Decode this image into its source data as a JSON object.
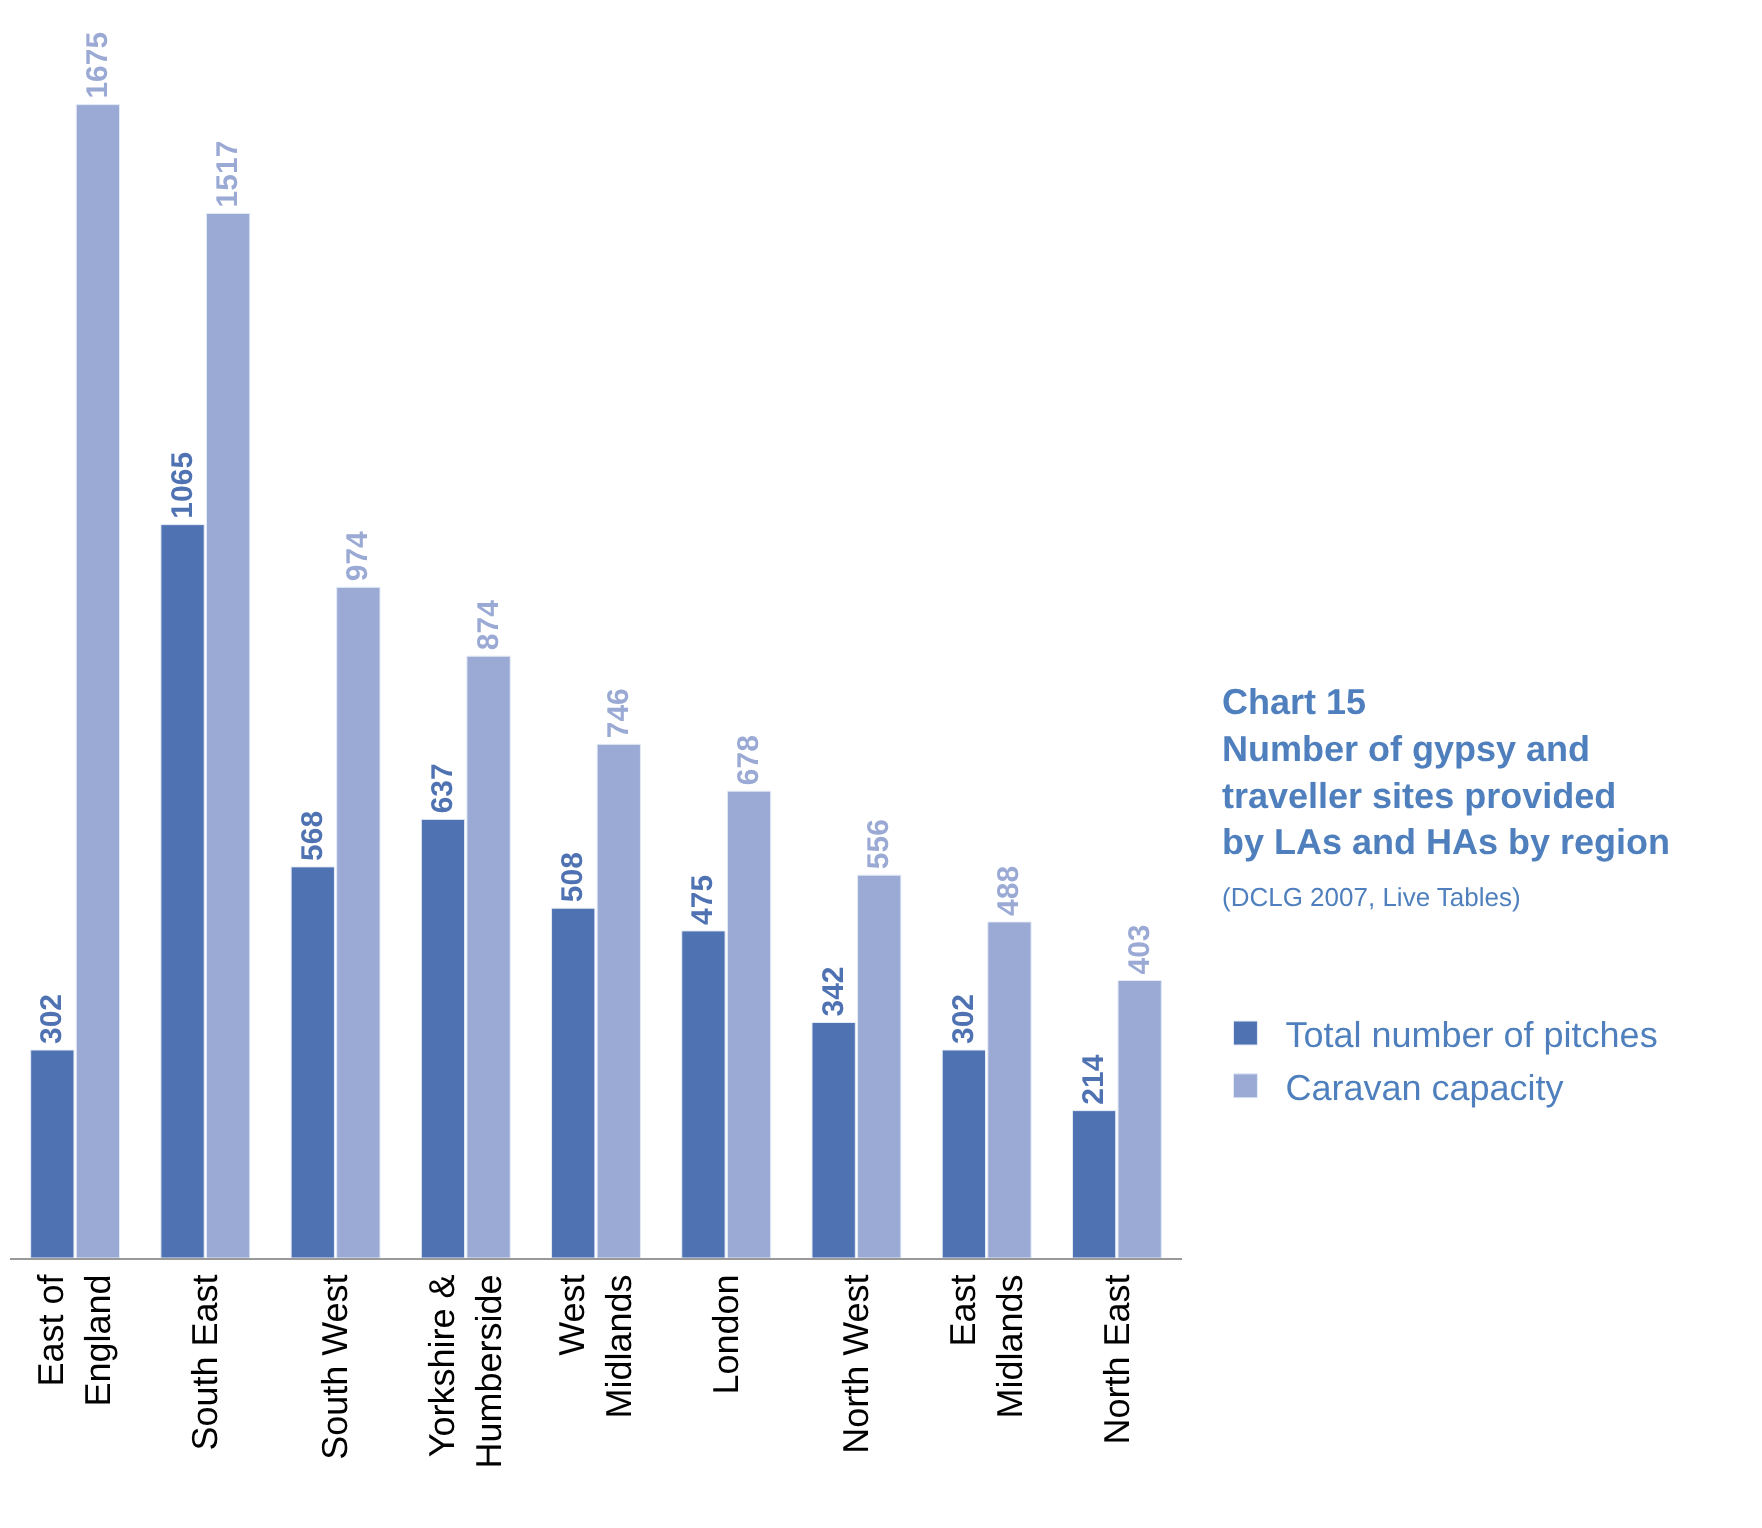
{
  "chart_data": {
    "type": "bar",
    "title": "Chart 15",
    "subtitle": "Number of gypsy and traveller sites provided by LAs and HAs by region",
    "annotations": [
      "(DCLG 2007, Live Tables)"
    ],
    "categories": [
      "East of\nEngland",
      "South East",
      "South West",
      "Yorkshire &\nHumberside",
      "West\nMidlands",
      "London",
      "North West",
      "East\nMidlands",
      "North East"
    ],
    "series": [
      {
        "name": "Total number of pitches",
        "color": "#4f72b2",
        "values": [
          302,
          1065,
          568,
          637,
          508,
          475,
          342,
          302,
          214
        ]
      },
      {
        "name": "Caravan capacity",
        "color": "#9aaad4",
        "values": [
          1675,
          1517,
          974,
          874,
          746,
          678,
          556,
          488,
          403
        ]
      }
    ],
    "data_labels": true,
    "legend": "right"
  }
}
